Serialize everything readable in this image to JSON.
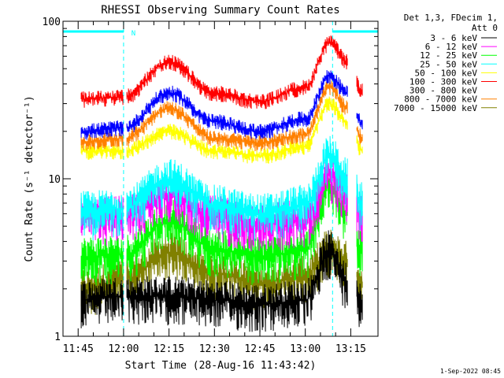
{
  "chart_data": {
    "type": "line",
    "title": "RHESSI Observing Summary Count Rates",
    "xlabel": "Start Time (28-Aug-16 11:43:42)",
    "ylabel": "Count Rate (s⁻¹ detector⁻¹)",
    "y_scale": "log",
    "ylim": [
      1,
      100
    ],
    "xlim": [
      "11:40",
      "13:24"
    ],
    "x_ticks": [
      "11:45",
      "12:00",
      "12:15",
      "12:30",
      "12:45",
      "13:00",
      "13:15"
    ],
    "y_ticks": [
      "1",
      "10",
      "100"
    ],
    "legend_header": [
      "Det 1,3, FDecim 1,",
      "Att 0"
    ],
    "legend_position": "top-right",
    "footer": "1-Sep-2022 08:45",
    "night_intervals": [
      [
        "11:40",
        "12:00"
      ],
      [
        "13:09",
        "13:24"
      ]
    ],
    "annotations": [
      {
        "text": "N",
        "at": "12:01"
      }
    ],
    "data_gaps": [
      [
        "12:00",
        "12:01"
      ],
      [
        "13:14",
        "13:17"
      ]
    ],
    "series": [
      {
        "name": "3 - 6 keV",
        "color": "#000000",
        "x": [
          "11:46",
          "12:00",
          "12:15",
          "12:30",
          "12:45",
          "13:00",
          "13:08",
          "13:14",
          "13:19"
        ],
        "values": [
          1.7,
          1.8,
          1.8,
          1.7,
          1.6,
          1.7,
          3.5,
          2.2,
          1.7
        ]
      },
      {
        "name": "6 - 12 keV",
        "color": "#ff00ff",
        "x": [
          "11:46",
          "12:00",
          "12:15",
          "12:30",
          "12:45",
          "13:00",
          "13:08",
          "13:14",
          "13:19"
        ],
        "values": [
          5.6,
          5.8,
          8.0,
          5.8,
          5.2,
          5.5,
          10.5,
          8.0,
          6.0
        ]
      },
      {
        "name": "12 - 25 keV",
        "color": "#00ff00",
        "x": [
          "11:46",
          "12:00",
          "12:15",
          "12:30",
          "12:45",
          "13:00",
          "13:08",
          "13:14",
          "13:19"
        ],
        "values": [
          3.2,
          3.3,
          5.5,
          3.6,
          3.2,
          3.5,
          9.0,
          6.0,
          3.5
        ]
      },
      {
        "name": "25 - 50 keV",
        "color": "#00ffff",
        "x": [
          "11:46",
          "12:00",
          "12:15",
          "12:30",
          "12:45",
          "13:00",
          "13:08",
          "13:14",
          "13:19"
        ],
        "values": [
          6.2,
          6.5,
          10.0,
          6.8,
          6.0,
          6.8,
          14.0,
          10.0,
          7.0
        ]
      },
      {
        "name": "50 - 100 keV",
        "color": "#ffff00",
        "x": [
          "11:46",
          "12:00",
          "12:15",
          "12:30",
          "12:45",
          "13:00",
          "13:08",
          "13:14",
          "13:19"
        ],
        "values": [
          15,
          15,
          20,
          15,
          14,
          16,
          30,
          23,
          15
        ]
      },
      {
        "name": "100 - 300 keV",
        "color": "#ff0000",
        "x": [
          "11:46",
          "12:00",
          "12:15",
          "12:30",
          "12:45",
          "13:00",
          "13:08",
          "13:14",
          "13:19"
        ],
        "values": [
          32,
          33,
          55,
          35,
          31,
          38,
          73,
          55,
          36
        ]
      },
      {
        "name": "300 - 800 keV",
        "color": "#ffffff",
        "x": [],
        "values": []
      },
      {
        "name": "800 - 7000 keV",
        "color": "#ff8000",
        "x": [
          "11:46",
          "12:00",
          "12:15",
          "12:30",
          "12:45",
          "13:00",
          "13:08",
          "13:14",
          "13:19"
        ],
        "values": [
          17,
          18,
          28,
          18,
          17,
          19,
          38,
          28,
          18
        ]
      },
      {
        "name": "7000 - 15000 keV",
        "color": "#808000",
        "x": [
          "11:46",
          "12:00",
          "12:15",
          "12:30",
          "12:45",
          "13:00",
          "13:08",
          "13:14",
          "13:19"
        ],
        "values": [
          2.0,
          2.3,
          3.4,
          2.5,
          2.2,
          2.4,
          3.6,
          3.0,
          2.2
        ]
      },
      {
        "name": "",
        "color": "#0000ff",
        "x": [
          "11:46",
          "12:00",
          "12:15",
          "12:30",
          "12:45",
          "13:00",
          "13:08",
          "13:14",
          "13:19"
        ],
        "values": [
          20,
          21,
          35,
          23,
          20,
          24,
          45,
          35,
          22
        ]
      }
    ]
  }
}
